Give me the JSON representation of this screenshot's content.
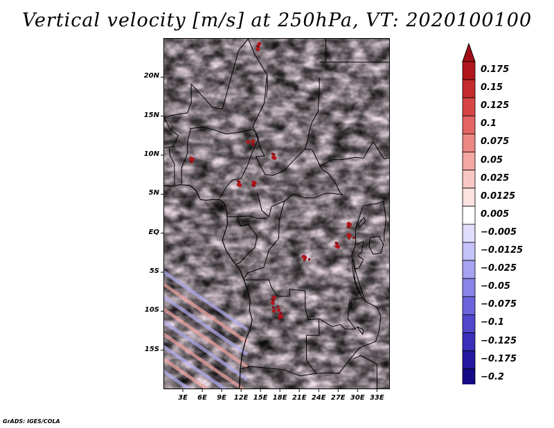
{
  "title": "Vertical velocity [m/s] at 250hPa, VT: 2020100100",
  "credit": "GrADS: IGES/COLA",
  "map": {
    "projection": "latlon",
    "lon_range": [
      0,
      35
    ],
    "lat_range": [
      -20,
      25
    ],
    "lat_labels": [
      {
        "lat": 20,
        "text": "20N"
      },
      {
        "lat": 15,
        "text": "15N"
      },
      {
        "lat": 10,
        "text": "10N"
      },
      {
        "lat": 5,
        "text": "5N"
      },
      {
        "lat": 0,
        "text": "EQ"
      },
      {
        "lat": -5,
        "text": "5S"
      },
      {
        "lat": -10,
        "text": "10S"
      },
      {
        "lat": -15,
        "text": "15S"
      }
    ],
    "lon_labels": [
      {
        "lon": 3,
        "text": "3E"
      },
      {
        "lon": 6,
        "text": "6E"
      },
      {
        "lon": 9,
        "text": "9E"
      },
      {
        "lon": 12,
        "text": "12E"
      },
      {
        "lon": 15,
        "text": "15E"
      },
      {
        "lon": 18,
        "text": "18E"
      },
      {
        "lon": 21,
        "text": "21E"
      },
      {
        "lon": 24,
        "text": "24E"
      },
      {
        "lon": 27,
        "text": "27E"
      },
      {
        "lon": 30,
        "text": "30E"
      },
      {
        "lon": 33,
        "text": "33E"
      }
    ]
  },
  "colorbar": {
    "variable": "vertical velocity",
    "units": "m/s",
    "levels": [
      "0.175",
      "0.15",
      "0.125",
      "0.1",
      "0.075",
      "0.05",
      "0.025",
      "0.0125",
      "0.005",
      "−0.005",
      "−0.0125",
      "−0.025",
      "−0.05",
      "−0.075",
      "−0.1",
      "−0.125",
      "−0.175",
      "−0.2"
    ],
    "colors": [
      "#b0161c",
      "#c52a2d",
      "#d74545",
      "#e26463",
      "#ec8784",
      "#f4a8a4",
      "#f9c7c3",
      "#fde2df",
      "#ffffff",
      "#e0defc",
      "#c4c2f8",
      "#a7a3f1",
      "#8a84e8",
      "#6c64db",
      "#5047cb",
      "#3a2fb8",
      "#2618a0",
      "#160a86"
    ],
    "end_colors": {
      "top": "#a10d17",
      "bottom": "#10068a"
    }
  }
}
